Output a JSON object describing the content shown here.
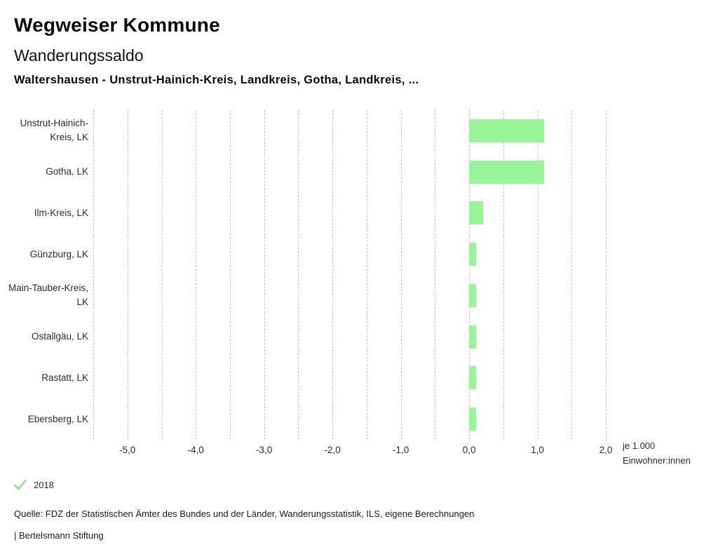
{
  "header": {
    "title": "Wegweiser Kommune",
    "subtitle": "Wanderungssaldo",
    "context": "Waltershausen - Unstrut-Hainich-Kreis, Landkreis, Gotha, Landkreis, ..."
  },
  "chart_data": {
    "type": "bar",
    "orientation": "horizontal",
    "title": "Wanderungssaldo",
    "categories": [
      "Unstrut-Hainich-Kreis, LK",
      "Gotha, LK",
      "Ilm-Kreis, LK",
      "Günzburg, LK",
      "Main-Tauber-Kreis, LK",
      "Ostallgäu, LK",
      "Rastatt, LK",
      "Ebersberg, LK"
    ],
    "series": [
      {
        "name": "2018",
        "values": [
          1.1,
          1.1,
          0.2,
          0.1,
          0.1,
          0.1,
          0.1,
          0.1
        ]
      }
    ],
    "xlim": [
      -5.5,
      2.0
    ],
    "grid_step": 0.5,
    "grid": true,
    "x_tick_values": [
      -5,
      -4,
      -3,
      -2,
      -1,
      0,
      1,
      2
    ],
    "x_tick_labels": [
      "-5,0",
      "-4,0",
      "-3,0",
      "-2,0",
      "-1,0",
      "0,0",
      "1,0",
      "2,0"
    ],
    "xlabel_line1": "je 1.000",
    "xlabel_line2": "Einwohner:innen",
    "bar_color": "#98f698",
    "gridline_color": "#c3c3c3",
    "legend_position": "bottom-left"
  },
  "legend": {
    "items": [
      {
        "label": "2018",
        "icon": "check-icon",
        "color": "#8fdc8f"
      }
    ]
  },
  "footer": {
    "source": "Quelle: FDZ der Statistischen Ämter des Bundes und der Länder, Wanderungsstatistik, ILS, eigene Berechnungen",
    "branding": "| Bertelsmann Stiftung"
  }
}
